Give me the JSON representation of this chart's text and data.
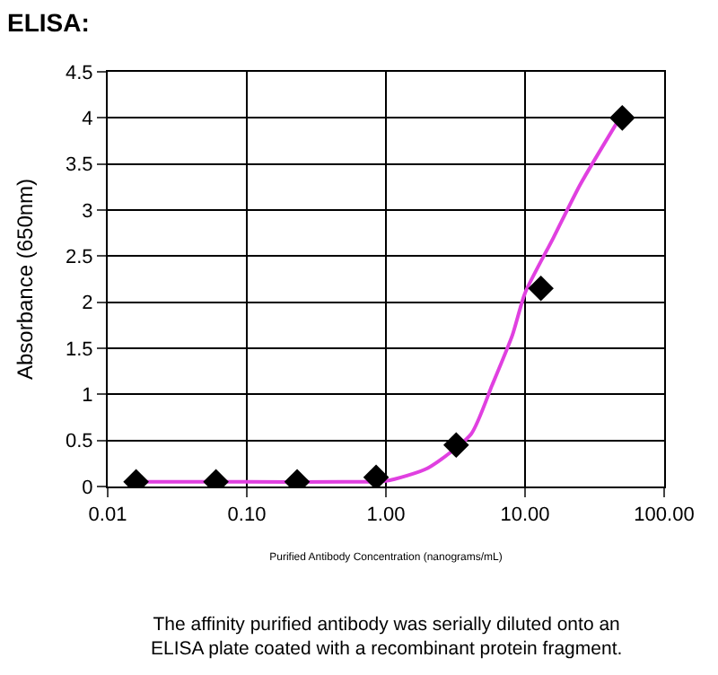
{
  "chart_data": {
    "type": "scatter",
    "title": "ELISA:",
    "xlabel": "Purified Antibody Concentration (nanograms/mL)",
    "ylabel": "Absorbance (650nm)",
    "annotations": [
      "The affinity purified antibody was serially diluted onto an ELISA plate coated with a recombinant protein fragment."
    ],
    "log": "x",
    "grid": true,
    "xlim": [
      0.01,
      100
    ],
    "xticks": [
      0.01,
      {
        "value": 0.1,
        "label": "0.10"
      },
      {
        "value": 1,
        "label": "1.00"
      },
      {
        "value": 10,
        "label": "10.00"
      },
      {
        "value": 100,
        "label": "100.00"
      }
    ],
    "ylim": [
      0,
      4.5
    ],
    "yticks": [
      0,
      0.5,
      1,
      1.5,
      2,
      2.5,
      3,
      3.5,
      4,
      4.5
    ],
    "series": [
      {
        "type": "line",
        "color": "#e040e0",
        "marker": "none",
        "line_style": "solid",
        "x": [
          0.016,
          0.1,
          0.5,
          1,
          2,
          4.1,
          5.8,
          8.1,
          10,
          16,
          25,
          48
        ],
        "values": [
          0.05,
          0.05,
          0.05,
          0.06,
          0.2,
          0.57,
          1.1,
          1.64,
          2.1,
          2.7,
          3.28,
          4.0
        ]
      },
      {
        "color": "#000000",
        "marker": "diamond",
        "x": [
          0.016,
          0.06,
          0.23,
          0.85,
          3.2,
          13,
          50
        ],
        "values": [
          0.05,
          0.05,
          0.05,
          0.1,
          0.45,
          2.15,
          4.0
        ]
      }
    ]
  }
}
